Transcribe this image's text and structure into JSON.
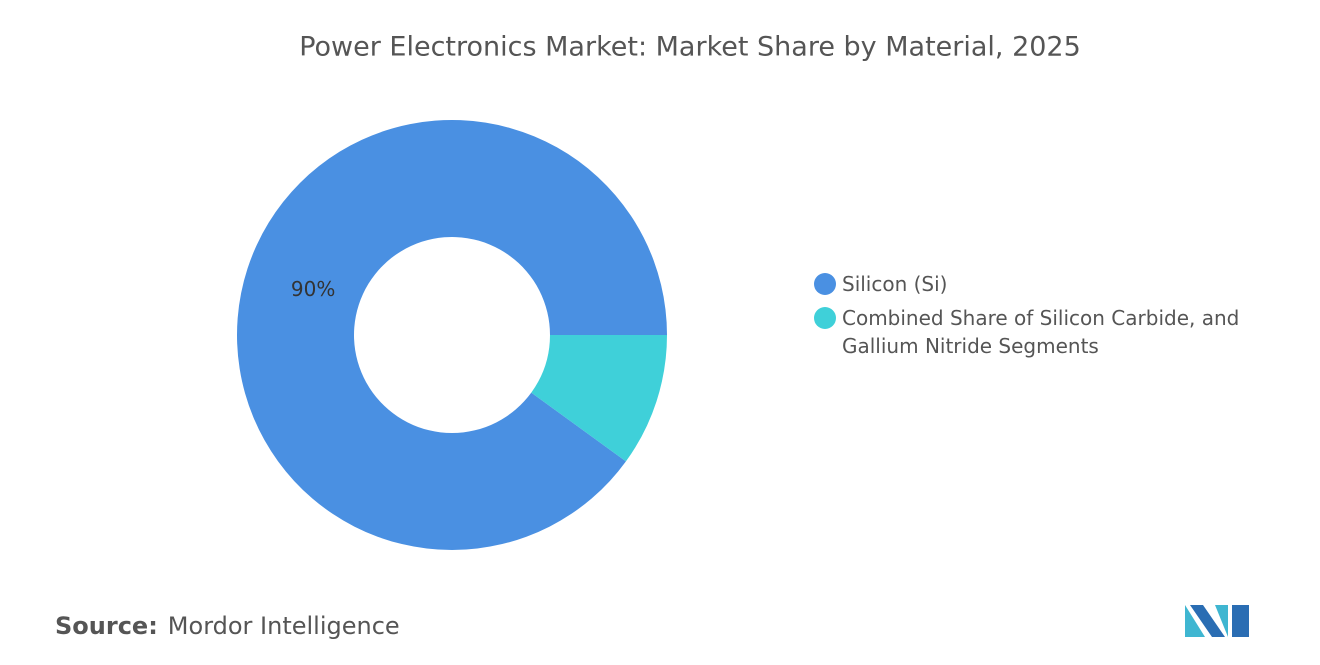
{
  "chart_data": {
    "type": "donut",
    "title": "Power Electronics Market: Market Share by Material, 2025",
    "categories": [
      "Silicon (Si)",
      "Combined Share of Silicon Carbide, and Gallium Nitride Segments"
    ],
    "values": [
      90,
      10
    ],
    "value_labels": [
      "90%",
      null
    ],
    "colors": [
      "#4a90e2",
      "#3fd0d9"
    ],
    "legend": "right"
  },
  "footer": {
    "source_label": "Source:",
    "source": "Mordor Intelligence"
  }
}
